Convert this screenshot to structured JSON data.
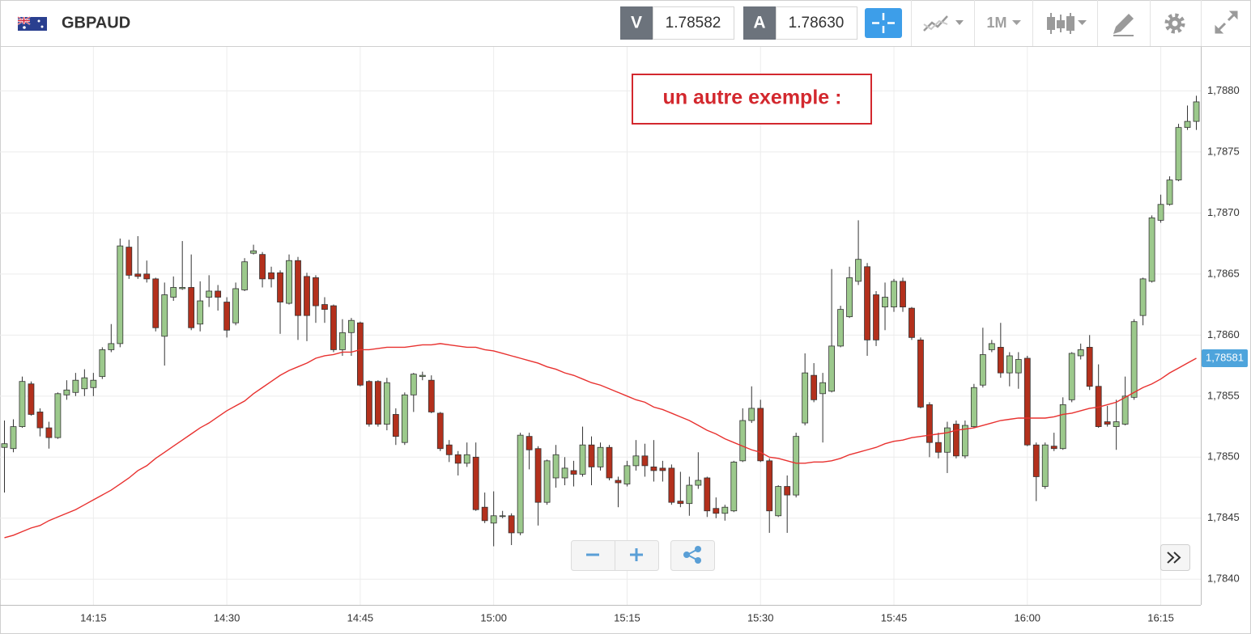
{
  "toolbar": {
    "symbol": "GBPAUD",
    "bid_label": "V",
    "bid": "1.78582",
    "ask_label": "A",
    "ask": "1.78630",
    "timeframe": "1M"
  },
  "chart_data": {
    "type": "candlestick",
    "annotation": "un autre exemple :",
    "categories": [
      null,
      null,
      null,
      null,
      null,
      null,
      null,
      null,
      null,
      null,
      "14:15",
      null,
      null,
      null,
      null,
      null,
      null,
      null,
      null,
      null,
      null,
      null,
      null,
      null,
      null,
      "14:30",
      null,
      null,
      null,
      null,
      null,
      null,
      null,
      null,
      null,
      null,
      null,
      null,
      null,
      null,
      "14:45",
      null,
      null,
      null,
      null,
      null,
      null,
      null,
      null,
      null,
      null,
      null,
      null,
      null,
      null,
      "15:00",
      null,
      null,
      null,
      null,
      null,
      null,
      null,
      null,
      null,
      null,
      null,
      null,
      null,
      null,
      "15:15",
      null,
      null,
      null,
      null,
      null,
      null,
      null,
      null,
      null,
      null,
      null,
      null,
      null,
      null,
      "15:30",
      null,
      null,
      null,
      null,
      null,
      null,
      null,
      null,
      null,
      null,
      null,
      null,
      null,
      null,
      "15:45",
      null,
      null,
      null,
      null,
      null,
      null,
      null,
      null,
      null,
      null,
      null,
      null,
      null,
      null,
      "16:00",
      null,
      null,
      null,
      null,
      null,
      null,
      null,
      null,
      null,
      null,
      null,
      null,
      null,
      null,
      "16:15",
      null,
      null,
      null,
      null
    ],
    "open": [
      1.78508,
      1.78507,
      1.78525,
      1.7856,
      1.78537,
      1.78524,
      1.78516,
      1.78551,
      1.78553,
      1.78556,
      1.78557,
      1.78566,
      1.78588,
      1.78593,
      1.78672,
      1.7865,
      1.7865,
      1.78646,
      1.78599,
      1.78631,
      1.78638,
      1.78639,
      1.78609,
      1.78631,
      1.78636,
      1.78627,
      1.7861,
      1.78637,
      1.78667,
      1.78666,
      1.78651,
      1.78651,
      1.78626,
      1.78661,
      1.78648,
      1.78647,
      1.78625,
      1.78624,
      1.78588,
      1.78602,
      1.7861,
      1.78562,
      1.78562,
      1.78527,
      1.78535,
      1.78512,
      1.78551,
      1.78566,
      1.78563,
      1.78536,
      1.7851,
      1.78502,
      1.78495,
      1.785,
      1.78459,
      1.78446,
      1.78452,
      1.78452,
      1.78438,
      1.78517,
      1.78507,
      1.78463,
      1.78483,
      1.78483,
      1.78489,
      1.78486,
      1.7851,
      1.78492,
      1.78508,
      1.78481,
      1.78478,
      1.78493,
      1.78501,
      1.78492,
      1.78491,
      1.78491,
      1.78464,
      1.78462,
      1.78477,
      1.78483,
      1.78458,
      1.78454,
      1.78456,
      1.78497,
      1.7853,
      1.7854,
      1.78497,
      1.78452,
      1.78476,
      1.78469,
      1.78528,
      1.78567,
      1.78552,
      1.78554,
      1.78591,
      1.78615,
      1.78644,
      1.78656,
      1.78633,
      1.78623,
      1.78623,
      1.78644,
      1.78622,
      1.78596,
      1.78543,
      1.78512,
      1.78504,
      1.78527,
      1.78501,
      1.78525,
      1.78559,
      1.78588,
      1.7859,
      1.78569,
      1.78569,
      1.78581,
      1.7851,
      1.78476,
      1.78509,
      1.78507,
      1.78547,
      1.78583,
      1.7859,
      1.78558,
      1.78529,
      1.78525,
      1.78527,
      1.78549,
      1.78616,
      1.78644,
      1.78694,
      1.78707,
      1.78727,
      1.7877,
      1.78775
    ],
    "high": [
      1.7853,
      1.78531,
      1.78566,
      1.78562,
      1.7854,
      1.78529,
      1.78553,
      1.78563,
      1.78569,
      1.78572,
      1.78569,
      1.7859,
      1.78609,
      1.78679,
      1.78678,
      1.78681,
      1.78661,
      1.78647,
      1.78643,
      1.78648,
      1.78677,
      1.78666,
      1.78644,
      1.78649,
      1.78641,
      1.78631,
      1.78643,
      1.78663,
      1.78674,
      1.78668,
      1.78656,
      1.78653,
      1.78666,
      1.78664,
      1.78651,
      1.78649,
      1.78631,
      1.78625,
      1.78613,
      1.78614,
      1.78611,
      1.78563,
      1.78563,
      1.78565,
      1.7854,
      1.78553,
      1.78569,
      1.7857,
      1.78567,
      1.78537,
      1.78514,
      1.78505,
      1.78512,
      1.78512,
      1.78471,
      1.78472,
      1.78456,
      1.78454,
      1.7852,
      1.7852,
      1.78509,
      1.78498,
      1.7851,
      1.785,
      1.78497,
      1.78525,
      1.78517,
      1.78512,
      1.7851,
      1.78484,
      1.78497,
      1.78514,
      1.78511,
      1.78514,
      1.78497,
      1.78494,
      1.78488,
      1.78484,
      1.78504,
      1.78484,
      1.78467,
      1.78461,
      1.78497,
      1.7854,
      1.78558,
      1.78547,
      1.78499,
      1.78477,
      1.78485,
      1.7852,
      1.78585,
      1.78577,
      1.78569,
      1.78654,
      1.78624,
      1.78656,
      1.78694,
      1.78659,
      1.78636,
      1.78643,
      1.78646,
      1.78647,
      1.78623,
      1.78598,
      1.78545,
      1.7852,
      1.78529,
      1.7853,
      1.7853,
      1.7856,
      1.78606,
      1.78596,
      1.7861,
      1.78586,
      1.78586,
      1.78583,
      1.78512,
      1.78512,
      1.7852,
      1.78549,
      1.78586,
      1.78593,
      1.786,
      1.78576,
      1.78542,
      1.78547,
      1.78566,
      1.78613,
      1.78647,
      1.78698,
      1.78715,
      1.7873,
      1.78773,
      1.78788,
      1.78796
    ],
    "low": [
      1.78471,
      1.78504,
      1.78524,
      1.78534,
      1.78517,
      1.78507,
      1.78515,
      1.78547,
      1.7855,
      1.7855,
      1.7855,
      1.78564,
      1.78586,
      1.7859,
      1.78646,
      1.78646,
      1.78643,
      1.78603,
      1.78575,
      1.78628,
      1.78637,
      1.78604,
      1.78603,
      1.78623,
      1.7862,
      1.78598,
      1.78608,
      1.78636,
      1.78666,
      1.78639,
      1.78639,
      1.78601,
      1.78625,
      1.78596,
      1.78595,
      1.7861,
      1.7861,
      1.78586,
      1.78583,
      1.78583,
      1.78558,
      1.78525,
      1.78525,
      1.78522,
      1.7851,
      1.7851,
      1.78537,
      1.78563,
      1.78536,
      1.78505,
      1.78496,
      1.78485,
      1.78492,
      1.78456,
      1.78446,
      1.78427,
      1.7845,
      1.78428,
      1.78436,
      1.7849,
      1.78444,
      1.78461,
      1.78475,
      1.78477,
      1.78476,
      1.78484,
      1.78477,
      1.78489,
      1.78481,
      1.78459,
      1.78476,
      1.78489,
      1.78484,
      1.7848,
      1.7848,
      1.78461,
      1.78459,
      1.78452,
      1.78474,
      1.78451,
      1.7845,
      1.78448,
      1.78455,
      1.78496,
      1.78528,
      1.78496,
      1.78438,
      1.78451,
      1.78438,
      1.78467,
      1.78526,
      1.78545,
      1.78512,
      1.78553,
      1.7859,
      1.78614,
      1.78641,
      1.78583,
      1.78591,
      1.78604,
      1.78619,
      1.78619,
      1.78596,
      1.7854,
      1.785,
      1.78499,
      1.78487,
      1.78499,
      1.78499,
      1.78524,
      1.78557,
      1.78586,
      1.78565,
      1.78558,
      1.78556,
      1.78509,
      1.78464,
      1.78474,
      1.78505,
      1.78506,
      1.78545,
      1.7858,
      1.78555,
      1.78524,
      1.78525,
      1.78506,
      1.78526,
      1.78547,
      1.78608,
      1.78643,
      1.78692,
      1.78706,
      1.78726,
      1.78768,
      1.78768
    ],
    "close": [
      1.78511,
      1.78525,
      1.78562,
      1.78535,
      1.78524,
      1.78516,
      1.78552,
      1.78555,
      1.78563,
      1.78565,
      1.78563,
      1.78588,
      1.78593,
      1.78673,
      1.78649,
      1.78648,
      1.78646,
      1.78606,
      1.78633,
      1.78639,
      1.78639,
      1.78606,
      1.78628,
      1.78636,
      1.78631,
      1.78604,
      1.78638,
      1.7866,
      1.78669,
      1.78646,
      1.78646,
      1.78627,
      1.78661,
      1.78616,
      1.78616,
      1.78624,
      1.78621,
      1.78588,
      1.78602,
      1.78612,
      1.78559,
      1.78527,
      1.78527,
      1.78561,
      1.78517,
      1.78551,
      1.78568,
      1.78567,
      1.78537,
      1.78507,
      1.78502,
      1.78495,
      1.78502,
      1.78457,
      1.78448,
      1.78452,
      1.78452,
      1.78438,
      1.78518,
      1.78506,
      1.78463,
      1.78497,
      1.78502,
      1.78491,
      1.78486,
      1.7851,
      1.78492,
      1.78508,
      1.78483,
      1.78479,
      1.78493,
      1.78501,
      1.78493,
      1.78489,
      1.78489,
      1.78463,
      1.78462,
      1.78477,
      1.78481,
      1.78456,
      1.78454,
      1.78459,
      1.78496,
      1.7853,
      1.7854,
      1.78497,
      1.78456,
      1.78476,
      1.78469,
      1.78517,
      1.78569,
      1.78547,
      1.78561,
      1.78591,
      1.78621,
      1.78647,
      1.78662,
      1.78596,
      1.78596,
      1.78631,
      1.78644,
      1.78623,
      1.78598,
      1.78541,
      1.78512,
      1.78504,
      1.78524,
      1.78501,
      1.78526,
      1.78557,
      1.78584,
      1.78593,
      1.78569,
      1.78583,
      1.7858,
      1.7851,
      1.78484,
      1.7851,
      1.78507,
      1.78543,
      1.78585,
      1.78588,
      1.78558,
      1.78525,
      1.78527,
      1.78529,
      1.7855,
      1.78611,
      1.78646,
      1.78696,
      1.78707,
      1.78727,
      1.7877,
      1.78775,
      1.78791
    ],
    "up_color": "#9cc98c",
    "down_color": "#b3301c",
    "moving_average": {
      "color": "#e8312f",
      "values": [
        1.78434,
        1.78436,
        1.78439,
        1.78442,
        1.78444,
        1.78448,
        1.78451,
        1.78454,
        1.78457,
        1.78461,
        1.78465,
        1.78469,
        1.78473,
        1.78478,
        1.78483,
        1.78489,
        1.78493,
        1.78499,
        1.78504,
        1.78509,
        1.78514,
        1.78519,
        1.78524,
        1.78528,
        1.78533,
        1.78538,
        1.78542,
        1.78546,
        1.78552,
        1.78557,
        1.78562,
        1.78567,
        1.78571,
        1.78574,
        1.78577,
        1.78581,
        1.78583,
        1.78584,
        1.78586,
        1.78586,
        1.78588,
        1.78588,
        1.78589,
        1.7859,
        1.7859,
        1.7859,
        1.78591,
        1.78592,
        1.78592,
        1.78593,
        1.78592,
        1.78591,
        1.7859,
        1.7859,
        1.78588,
        1.78587,
        1.78585,
        1.78583,
        1.78581,
        1.78579,
        1.78577,
        1.78574,
        1.78572,
        1.78569,
        1.78567,
        1.78564,
        1.78561,
        1.78559,
        1.78556,
        1.78553,
        1.7855,
        1.78547,
        1.78545,
        1.78541,
        1.78539,
        1.78536,
        1.78533,
        1.7853,
        1.78526,
        1.78522,
        1.78519,
        1.78515,
        1.78512,
        1.78509,
        1.78506,
        1.78504,
        1.785,
        1.78499,
        1.78497,
        1.78495,
        1.78495,
        1.78496,
        1.78496,
        1.78497,
        1.78499,
        1.78502,
        1.78504,
        1.78506,
        1.78508,
        1.78511,
        1.78513,
        1.78514,
        1.78516,
        1.78517,
        1.78518,
        1.78519,
        1.7852,
        1.78522,
        1.78523,
        1.78524,
        1.78526,
        1.78528,
        1.7853,
        1.78531,
        1.78532,
        1.78532,
        1.78532,
        1.78532,
        1.78533,
        1.78535,
        1.78536,
        1.78538,
        1.7854,
        1.78541,
        1.78543,
        1.78545,
        1.78549,
        1.78553,
        1.78557,
        1.7856,
        1.78564,
        1.78569,
        1.78573,
        1.78577,
        1.78581
      ]
    },
    "last_label": {
      "value": 1.78581,
      "label": "1,78581"
    },
    "ylim": [
      1.78379,
      1.78836
    ],
    "yticks": [
      {
        "value": 1.784,
        "label": "1,7840"
      },
      {
        "value": 1.7845,
        "label": "1,7845"
      },
      {
        "value": 1.785,
        "label": "1,7850"
      },
      {
        "value": 1.7855,
        "label": "1,7855"
      },
      {
        "value": 1.786,
        "label": "1,7860"
      },
      {
        "value": 1.7865,
        "label": "1,7865"
      },
      {
        "value": 1.787,
        "label": "1,7870"
      },
      {
        "value": 1.7875,
        "label": "1,7875"
      },
      {
        "value": 1.788,
        "label": "1,7880"
      }
    ],
    "grid": true
  }
}
